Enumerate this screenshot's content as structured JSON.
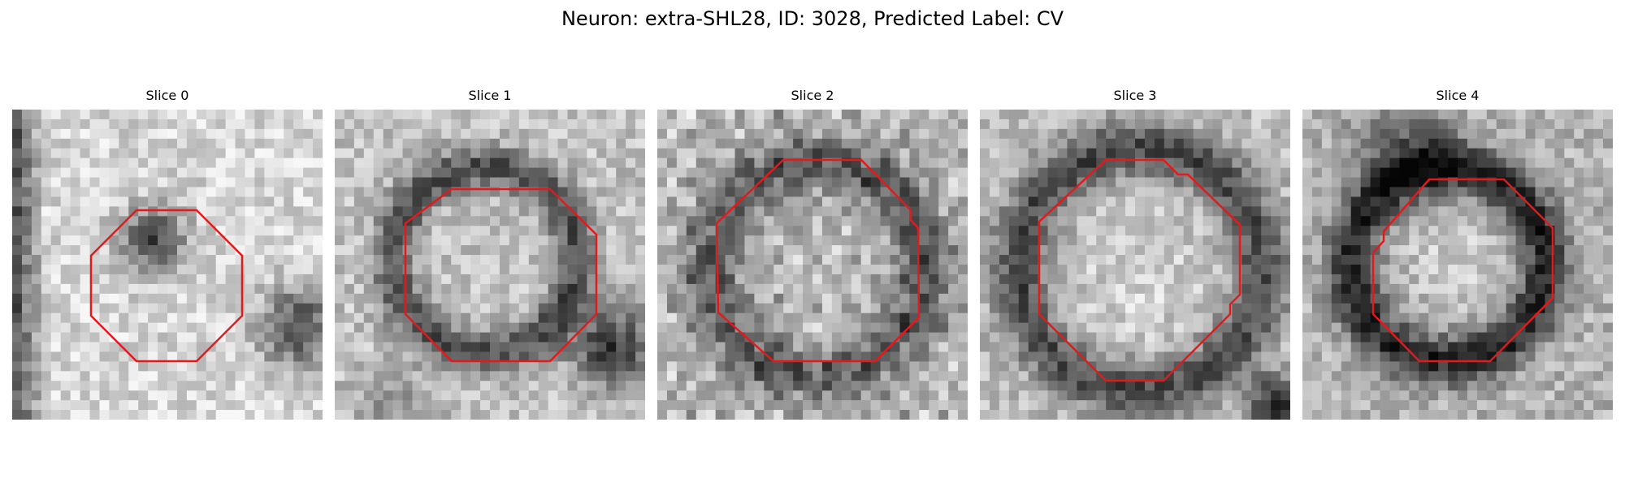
{
  "figure": {
    "title": "Neuron: extra-SHL28, ID: 3028, Predicted Label: CV",
    "contour_color": "#e31a1c",
    "colormap": "gray"
  },
  "slices": [
    {
      "title": "Slice 0"
    },
    {
      "title": "Slice 1"
    },
    {
      "title": "Slice 2"
    },
    {
      "title": "Slice 3"
    },
    {
      "title": "Slice 4"
    }
  ]
}
